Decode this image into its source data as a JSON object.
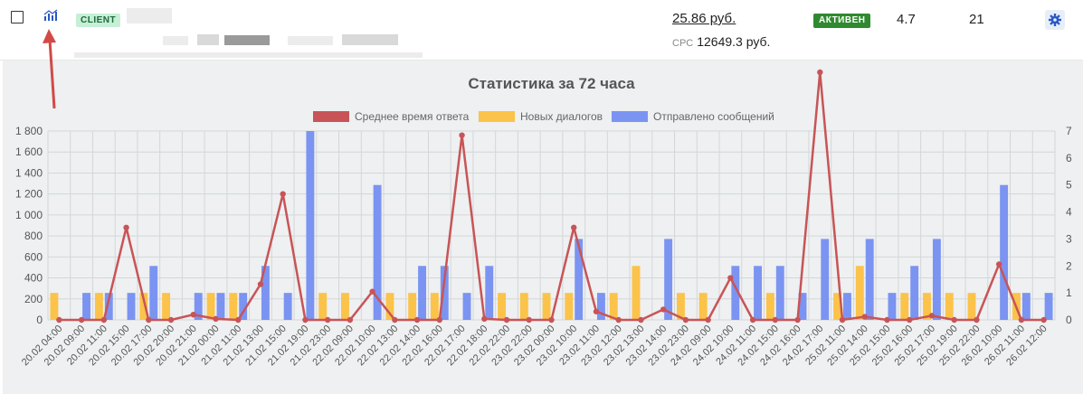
{
  "row": {
    "badge": "CLIENT",
    "price": "25.86 руб.",
    "cpc_label": "CPC",
    "cpc_value": "12649.3 руб.",
    "status": "АКТИВЕН",
    "rating": "4.7",
    "count": "21",
    "icons": {
      "stats": "bar-chart-icon",
      "settings": "gear-icon"
    },
    "colors": {
      "status": "#2f8a2f",
      "badge": "#c6efd6"
    }
  },
  "chart_data": {
    "type": "bar",
    "title": "Статистика за 72 часа",
    "legend": [
      "Среднее время ответа",
      "Новых диалогов",
      "Отправлено сообщений"
    ],
    "legend_position": "top",
    "categories": [
      "20.02 04:00",
      "20.02 09:00",
      "20.02 11:00",
      "20.02 15:00",
      "20.02 17:00",
      "20.02 20:00",
      "20.02 21:00",
      "21.02 00:00",
      "21.02 11:00",
      "21.02 13:00",
      "21.02 15:00",
      "21.02 19:00",
      "21.02 23:00",
      "22.02 09:00",
      "22.02 10:00",
      "22.02 13:00",
      "22.02 14:00",
      "22.02 16:00",
      "22.02 17:00",
      "22.02 18:00",
      "22.02 22:00",
      "23.02 22:00",
      "23.02 00:00",
      "23.02 10:00",
      "23.02 11:00",
      "23.02 12:00",
      "23.02 13:00",
      "23.02 14:00",
      "23.02 23:00",
      "24.02 09:00",
      "24.02 10:00",
      "24.02 11:00",
      "24.02 15:00",
      "24.02 16:00",
      "24.02 17:00",
      "25.02 11:00",
      "25.02 14:00",
      "25.02 15:00",
      "25.02 16:00",
      "25.02 17:00",
      "25.02 19:00",
      "25.02 22:00",
      "26.02 10:00",
      "26.02 11:00",
      "26.02 12:00"
    ],
    "series": [
      {
        "name": "Среднее время ответа",
        "color": "#c85457",
        "axis": "left",
        "kind": "line",
        "values": [
          0,
          0,
          0,
          880,
          0,
          0,
          50,
          10,
          0,
          340,
          1200,
          0,
          0,
          0,
          270,
          0,
          0,
          0,
          1760,
          10,
          0,
          0,
          0,
          880,
          80,
          0,
          0,
          100,
          0,
          0,
          400,
          0,
          0,
          0,
          2360,
          0,
          30,
          0,
          0,
          40,
          0,
          0,
          530,
          0,
          0
        ]
      },
      {
        "name": "Новых диалогов",
        "color": "#fbc34a",
        "axis": "right",
        "kind": "bar",
        "values": [
          1,
          0,
          1,
          0,
          1,
          1,
          0,
          1,
          1,
          0,
          0,
          0,
          1,
          1,
          0,
          1,
          1,
          1,
          0,
          0,
          1,
          1,
          1,
          1,
          0,
          1,
          2,
          0,
          1,
          1,
          0,
          0,
          1,
          0,
          0,
          1,
          2,
          0,
          1,
          1,
          1,
          1,
          0,
          1,
          0
        ]
      },
      {
        "name": "Отправлено сообщений",
        "color": "#7b94f2",
        "axis": "right",
        "kind": "bar",
        "values": [
          0,
          1,
          1,
          1,
          2,
          0,
          1,
          1,
          1,
          2,
          1,
          7,
          0,
          0,
          5,
          0,
          2,
          2,
          1,
          2,
          0,
          0,
          0,
          3,
          1,
          0,
          0,
          3,
          0,
          0,
          2,
          2,
          2,
          1,
          3,
          1,
          3,
          1,
          2,
          3,
          0,
          0,
          5,
          1,
          1
        ]
      }
    ],
    "y_left": {
      "range": [
        0,
        1800
      ],
      "ticks": [
        "0",
        "200",
        "400",
        "600",
        "800",
        "1 000",
        "1 200",
        "1 400",
        "1 600",
        "1 800"
      ]
    },
    "y_right": {
      "range": [
        0,
        7
      ],
      "ticks": [
        "0",
        "1",
        "2",
        "3",
        "4",
        "5",
        "6",
        "7"
      ]
    },
    "grid": true
  }
}
